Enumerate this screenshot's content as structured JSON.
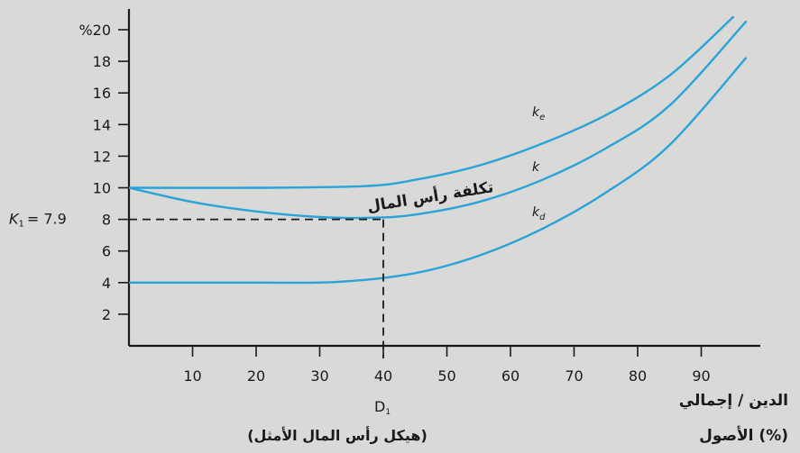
{
  "chart_data": {
    "type": "line",
    "title": "",
    "xlabel": "الدين / إجمالي الأصول (%)",
    "ylabel": "",
    "xlim": [
      0,
      100
    ],
    "ylim": [
      0,
      21.5
    ],
    "x_ticks": [
      10,
      20,
      30,
      40,
      50,
      60,
      70,
      80,
      90
    ],
    "y_ticks": [
      2,
      4,
      6,
      8,
      10,
      12,
      14,
      16,
      18,
      20
    ],
    "y_tick_labels": [
      "2",
      "4",
      "6",
      "8",
      "10",
      "12",
      "14",
      "16",
      "18",
      "%20"
    ],
    "series": [
      {
        "name": "ke",
        "color": "#29a3d8",
        "x": [
          0,
          20,
          37,
          45,
          55,
          65,
          75,
          85,
          95
        ],
        "y": [
          10,
          10,
          10.1,
          10.5,
          11.4,
          12.8,
          14.6,
          17.1,
          20.8
        ]
      },
      {
        "name": "k",
        "color": "#29a3d8",
        "x": [
          0,
          10,
          20,
          30,
          38,
          45,
          55,
          65,
          75,
          85,
          97
        ],
        "y": [
          10,
          9.1,
          8.5,
          8.15,
          8.1,
          8.3,
          9.1,
          10.5,
          12.5,
          15.2,
          20.5
        ]
      },
      {
        "name": "kd",
        "color": "#29a3d8",
        "x": [
          0,
          20,
          33,
          45,
          55,
          65,
          75,
          85,
          97
        ],
        "y": [
          4,
          4,
          4.05,
          4.6,
          5.7,
          7.4,
          9.7,
          12.7,
          18.2
        ]
      }
    ],
    "annotations": {
      "ke_label_main": "k",
      "ke_label_sub": "e",
      "k_label": "k",
      "kd_label_main": "k",
      "kd_label_sub": "d",
      "wacc_label": "تكلفة رأس المال",
      "optimal_y_label_main": "K",
      "optimal_y_label_sub": "1",
      "optimal_y_label_value": "= 7.9",
      "optimal_y": 8,
      "optimal_x": 40,
      "optimal_x_label_main": "D",
      "optimal_x_label_sub": "1",
      "optimal_caption": "(هيكل رأس المال الأمثل)"
    },
    "grid": false,
    "legend": "none",
    "line_color": "#29a3d8"
  },
  "axis_title": {
    "line1": "الدين / إجمالي",
    "line2": "الأصول (%)"
  }
}
